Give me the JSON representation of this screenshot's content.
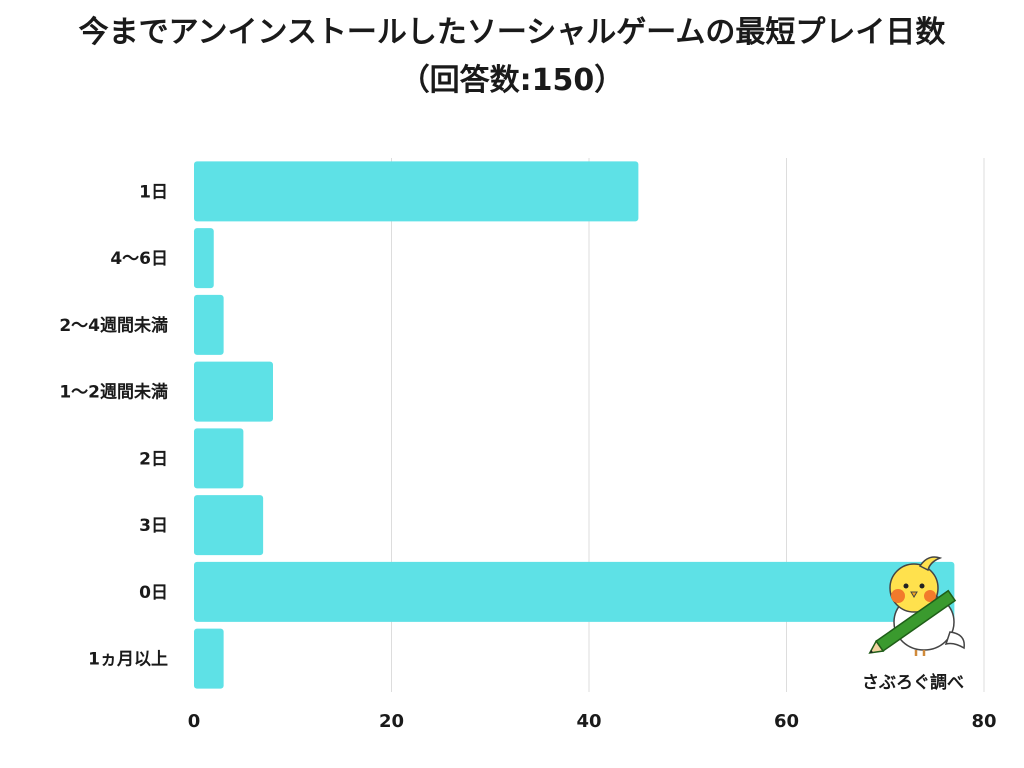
{
  "title": "今までアンインストールしたソーシャルゲームの最短プレイ日数",
  "subtitle": "（回答数:150）",
  "credit": "さぶろぐ調べ",
  "colors": {
    "bar": "#5ee1e6",
    "grid": "#dddddd",
    "text": "#1a1a1a"
  },
  "chart_data": {
    "type": "bar",
    "orientation": "horizontal",
    "categories": [
      "1日",
      "4〜6日",
      "2〜4週間未満",
      "1〜2週間未満",
      "2日",
      "3日",
      "0日",
      "1ヵ月以上"
    ],
    "values": [
      45,
      2,
      3,
      8,
      5,
      7,
      77,
      3
    ],
    "xlim": [
      0,
      80
    ],
    "xticks": [
      0,
      20,
      40,
      60,
      80
    ],
    "grid": true
  }
}
